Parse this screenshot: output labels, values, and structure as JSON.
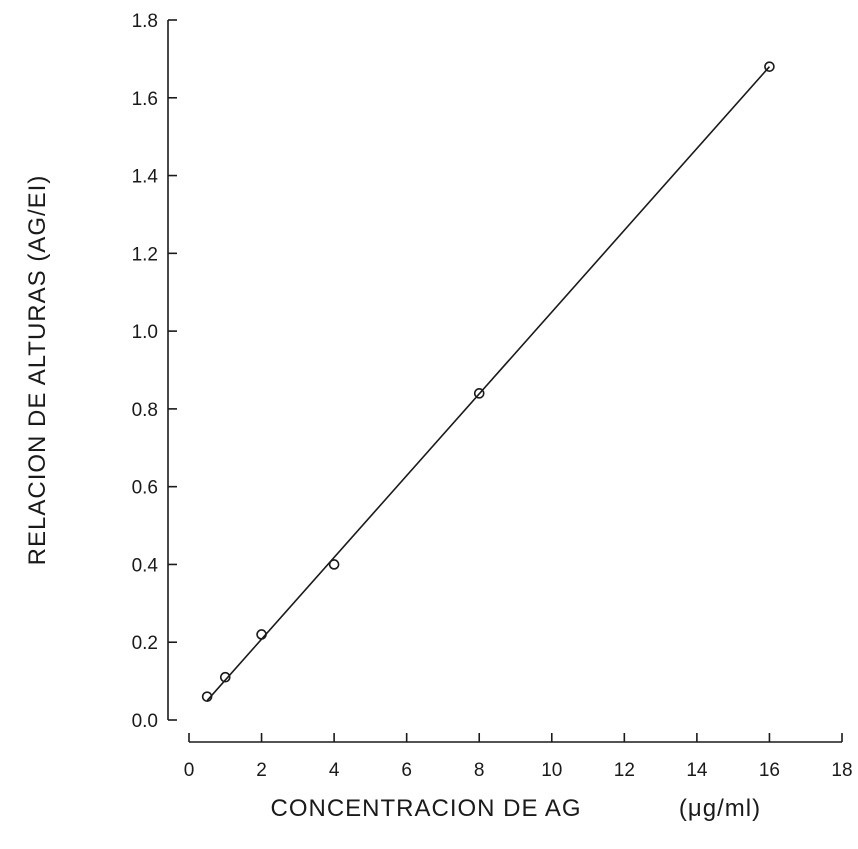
{
  "chart_data": {
    "type": "scatter",
    "title": "",
    "xlabel": "CONCENTRACION DE AG",
    "xunit": "(μg/ml)",
    "ylabel": "RELACION DE ALTURAS (AG/EI)",
    "xlim": [
      0,
      18
    ],
    "ylim": [
      0.0,
      1.8
    ],
    "x_ticks": [
      "0",
      "2",
      "4",
      "6",
      "8",
      "10",
      "12",
      "14",
      "16",
      "18"
    ],
    "y_ticks": [
      "0.0",
      "0.2",
      "0.4",
      "0.6",
      "0.8",
      "1.0",
      "1.2",
      "1.4",
      "1.6",
      "1.8"
    ],
    "grid": false,
    "marker": "open-circle",
    "points": [
      {
        "x": 0.5,
        "y": 0.06
      },
      {
        "x": 1,
        "y": 0.11
      },
      {
        "x": 2,
        "y": 0.22
      },
      {
        "x": 4,
        "y": 0.4
      },
      {
        "x": 8,
        "y": 0.84
      },
      {
        "x": 16,
        "y": 1.68
      }
    ],
    "fit_line": {
      "x": [
        0.5,
        16
      ],
      "y": [
        0.05,
        1.68
      ]
    }
  }
}
